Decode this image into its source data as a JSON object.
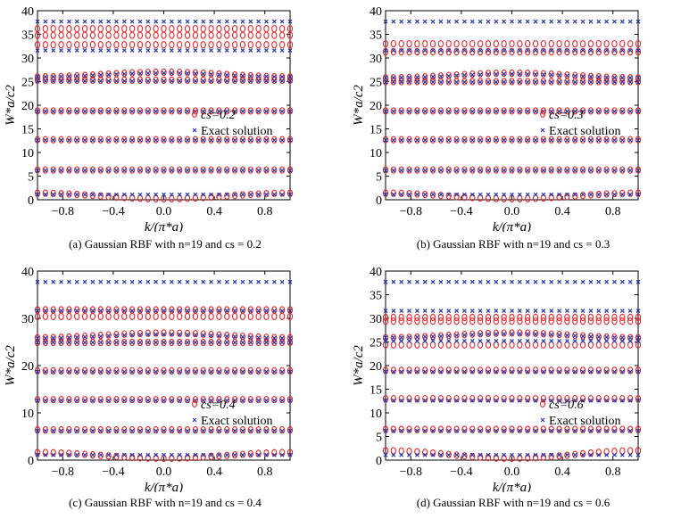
{
  "colors": {
    "approx": "#e0262b",
    "exact": "#2a3aa8",
    "axis": "#000000"
  },
  "axis_labels": {
    "x": "k/(π*a)",
    "y": "W*a/c2"
  },
  "legend_exact": "Exact solution",
  "chart_data": [
    {
      "type": "scatter",
      "caption": "(a) Gaussian RBF with n=19 and cs = 0.2",
      "legend_cs": "cs=0.2",
      "xlim": [
        -1,
        1
      ],
      "ylim": [
        0,
        40
      ],
      "xticks": [
        -0.8,
        -0.4,
        0.0,
        0.4,
        0.8
      ],
      "xtick_labels": [
        "−0.8",
        "−0.4",
        "0.0",
        "0.4",
        "0.8"
      ],
      "yticks": [
        0,
        5,
        10,
        15,
        20,
        25,
        30,
        35,
        40
      ],
      "ytick_labels": [
        "0",
        "5",
        "10",
        "15",
        "20",
        "25",
        "30",
        "35",
        "40"
      ],
      "series": [
        {
          "name": "cs=0.2",
          "marker": "circle",
          "bands": [
            {
              "base": 0.8,
              "amp": -0.6,
              "shape": "cos"
            },
            {
              "base": 6.3,
              "amp": 0.1,
              "shape": "flat"
            },
            {
              "base": 12.7,
              "amp": 0,
              "shape": "flat"
            },
            {
              "base": 18.8,
              "amp": 0,
              "shape": "flat"
            },
            {
              "base": 25.3,
              "amp": 0,
              "shape": "flat"
            },
            {
              "base": 26.5,
              "amp": 0.5,
              "shape": "cos"
            },
            {
              "base": 32.8,
              "amp": 0,
              "shape": "flat"
            },
            {
              "base": 34.8,
              "amp": 0,
              "shape": "flat"
            },
            {
              "base": 36.2,
              "amp": 0,
              "shape": "flat"
            }
          ]
        },
        {
          "name": "Exact solution",
          "marker": "x",
          "bands": [
            {
              "base": 1.1,
              "amp": 0,
              "shape": "flat"
            },
            {
              "base": 6.2,
              "amp": 0,
              "shape": "flat"
            },
            {
              "base": 12.6,
              "amp": 0,
              "shape": "flat"
            },
            {
              "base": 18.7,
              "amp": 0,
              "shape": "flat"
            },
            {
              "base": 25.1,
              "amp": 0,
              "shape": "flat"
            },
            {
              "base": 26.4,
              "amp": 0.4,
              "shape": "cos"
            },
            {
              "base": 31.6,
              "amp": 0,
              "shape": "flat"
            },
            {
              "base": 37.7,
              "amp": 0,
              "shape": "flat"
            }
          ]
        }
      ]
    },
    {
      "type": "scatter",
      "caption": "(b) Gaussian RBF with n=19 and cs = 0.3",
      "legend_cs": "cs=0.3",
      "xlim": [
        -1,
        1
      ],
      "ylim": [
        0,
        40
      ],
      "xticks": [
        -0.8,
        -0.4,
        0.0,
        0.4,
        0.8
      ],
      "xtick_labels": [
        "−0.8",
        "−0.4",
        "0.0",
        "0.4",
        "0.8"
      ],
      "yticks": [
        0,
        5,
        10,
        15,
        20,
        25,
        30,
        35,
        40
      ],
      "ytick_labels": [
        "0",
        "5",
        "10",
        "15",
        "20",
        "25",
        "30",
        "35",
        "40"
      ],
      "series": [
        {
          "name": "cs=0.3",
          "marker": "circle",
          "bands": [
            {
              "base": 0.8,
              "amp": -0.6,
              "shape": "cos"
            },
            {
              "base": 6.3,
              "amp": 0,
              "shape": "flat"
            },
            {
              "base": 12.7,
              "amp": 0,
              "shape": "flat"
            },
            {
              "base": 18.8,
              "amp": 0,
              "shape": "flat"
            },
            {
              "base": 25.0,
              "amp": 0,
              "shape": "flat"
            },
            {
              "base": 26.3,
              "amp": 0.5,
              "shape": "cos"
            },
            {
              "base": 31.3,
              "amp": 0,
              "shape": "flat"
            },
            {
              "base": 33.0,
              "amp": 0,
              "shape": "flat"
            }
          ]
        },
        {
          "name": "Exact solution",
          "marker": "x",
          "bands": [
            {
              "base": 1.1,
              "amp": 0,
              "shape": "flat"
            },
            {
              "base": 6.2,
              "amp": 0,
              "shape": "flat"
            },
            {
              "base": 12.6,
              "amp": 0,
              "shape": "flat"
            },
            {
              "base": 18.7,
              "amp": 0,
              "shape": "flat"
            },
            {
              "base": 24.9,
              "amp": 0,
              "shape": "flat"
            },
            {
              "base": 26.2,
              "amp": 0.4,
              "shape": "cos"
            },
            {
              "base": 31.6,
              "amp": 0,
              "shape": "flat"
            },
            {
              "base": 37.7,
              "amp": 0,
              "shape": "flat"
            }
          ]
        }
      ]
    },
    {
      "type": "scatter",
      "caption": "(c) Gaussian RBF with n=19 and cs = 0.4",
      "legend_cs": "cs=0.4",
      "xlim": [
        -1,
        1
      ],
      "ylim": [
        0,
        40
      ],
      "xticks": [
        -0.8,
        -0.4,
        0.0,
        0.4,
        0.8
      ],
      "xtick_labels": [
        "−0.8",
        "−0.4",
        "0.0",
        "0.4",
        "0.8"
      ],
      "yticks": [
        0,
        10,
        20,
        30,
        40
      ],
      "ytick_labels": [
        "0",
        "10",
        "20",
        "30",
        "40"
      ],
      "series": [
        {
          "name": "cs=0.4",
          "marker": "circle",
          "bands": [
            {
              "base": 1.0,
              "amp": -0.6,
              "shape": "cos"
            },
            {
              "base": 6.4,
              "amp": 0,
              "shape": "flat"
            },
            {
              "base": 12.8,
              "amp": 0,
              "shape": "flat"
            },
            {
              "base": 18.9,
              "amp": 0,
              "shape": "flat"
            },
            {
              "base": 24.9,
              "amp": 0,
              "shape": "flat"
            },
            {
              "base": 26.4,
              "amp": 0.5,
              "shape": "cos"
            },
            {
              "base": 30.4,
              "amp": 0,
              "shape": "flat"
            },
            {
              "base": 31.8,
              "amp": 0,
              "shape": "flat"
            }
          ]
        },
        {
          "name": "Exact solution",
          "marker": "x",
          "bands": [
            {
              "base": 1.1,
              "amp": 0,
              "shape": "flat"
            },
            {
              "base": 6.2,
              "amp": 0,
              "shape": "flat"
            },
            {
              "base": 12.6,
              "amp": 0,
              "shape": "flat"
            },
            {
              "base": 18.7,
              "amp": 0,
              "shape": "flat"
            },
            {
              "base": 24.9,
              "amp": 0,
              "shape": "flat"
            },
            {
              "base": 26.2,
              "amp": 0.4,
              "shape": "cos"
            },
            {
              "base": 31.6,
              "amp": 0,
              "shape": "flat"
            },
            {
              "base": 37.7,
              "amp": 0,
              "shape": "flat"
            }
          ]
        }
      ]
    },
    {
      "type": "scatter",
      "caption": "(d) Gaussian RBF with n=19 and cs = 0.6",
      "legend_cs": "cs=0.6",
      "xlim": [
        -1,
        1
      ],
      "ylim": [
        0,
        40
      ],
      "xticks": [
        -0.8,
        -0.4,
        0.0,
        0.4,
        0.8
      ],
      "xtick_labels": [
        "−0.8",
        "−0.4",
        "0.0",
        "0.4",
        "0.8"
      ],
      "yticks": [
        0,
        5,
        10,
        15,
        20,
        25,
        30,
        35,
        40
      ],
      "ytick_labels": [
        "0",
        "5",
        "10",
        "15",
        "20",
        "25",
        "30",
        "35",
        "40"
      ],
      "series": [
        {
          "name": "cs=0.6",
          "marker": "circle",
          "bands": [
            {
              "base": 1.2,
              "amp": -0.8,
              "shape": "cos"
            },
            {
              "base": 6.5,
              "amp": 0,
              "shape": "flat"
            },
            {
              "base": 13.0,
              "amp": 0,
              "shape": "flat"
            },
            {
              "base": 19.0,
              "amp": 0,
              "shape": "flat"
            },
            {
              "base": 24.4,
              "amp": 0,
              "shape": "flat"
            },
            {
              "base": 26.4,
              "amp": 0.5,
              "shape": "cos"
            },
            {
              "base": 29.4,
              "amp": 0,
              "shape": "flat"
            },
            {
              "base": 30.2,
              "amp": 0,
              "shape": "flat"
            }
          ]
        },
        {
          "name": "Exact solution",
          "marker": "x",
          "bands": [
            {
              "base": 1.1,
              "amp": 0,
              "shape": "flat"
            },
            {
              "base": 6.2,
              "amp": 0,
              "shape": "flat"
            },
            {
              "base": 12.6,
              "amp": 0,
              "shape": "flat"
            },
            {
              "base": 18.7,
              "amp": 0,
              "shape": "flat"
            },
            {
              "base": 25.2,
              "amp": 0,
              "shape": "flat"
            },
            {
              "base": 26.3,
              "amp": 0.4,
              "shape": "cos"
            },
            {
              "base": 31.6,
              "amp": 0,
              "shape": "flat"
            },
            {
              "base": 37.7,
              "amp": 0,
              "shape": "flat"
            }
          ]
        }
      ]
    }
  ]
}
